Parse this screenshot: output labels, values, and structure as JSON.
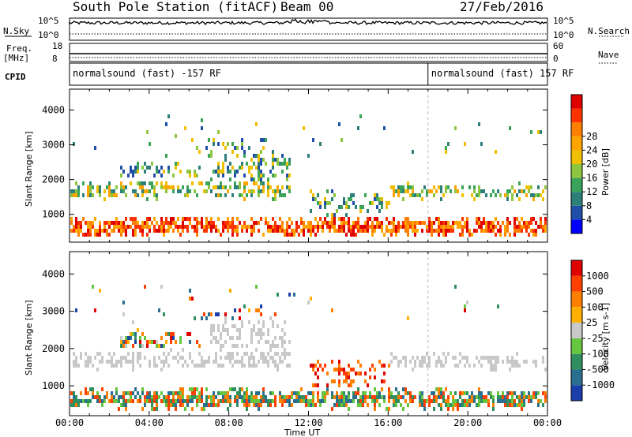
{
  "header": {
    "station": "South Pole Station (fitACF)",
    "beam": "Beam 00",
    "date": "27/Feb/2016"
  },
  "panel_labels": {
    "nsky": "N.Sky",
    "nsearch": "N.Search",
    "freq_top": "Freq.",
    "freq_unit": "[MHz]",
    "nave": "Nave",
    "cpid": "CPID"
  },
  "aux_ticks": {
    "nsky_hi": "10^5",
    "nsky_lo": "10^0",
    "nsearch_hi": "10^5",
    "nsearch_lo": "10^0",
    "freq_hi": "18",
    "freq_lo": "8",
    "nave_hi": "60",
    "nave_lo": "0"
  },
  "cpid_labels": [
    {
      "text": "normalsound (fast) -157 RF",
      "start_hour": 0.0
    },
    {
      "text": "normalsound (fast) 157 RF",
      "start_hour": 18.0
    }
  ],
  "chart_data": [
    {
      "type": "heatmap",
      "name": "power",
      "ylabel": "Slant Range [km]",
      "xlabel": "",
      "xlim_hours": [
        0,
        24
      ],
      "ylim": [
        200,
        4600
      ],
      "y_ticks": [
        1000,
        2000,
        3000,
        4000
      ],
      "colorbar": {
        "label": "Power [dB]",
        "ticks": [
          "4",
          "8",
          "12",
          "16",
          "20",
          "24",
          "28"
        ],
        "colors": [
          "#0000ff",
          "#1f4fa8",
          "#2d7f7a",
          "#3aa35a",
          "#8cc63f",
          "#f0c000",
          "#ffa500",
          "#ff7f00",
          "#ff3300",
          "#e00000"
        ]
      }
    },
    {
      "type": "heatmap",
      "name": "velocity",
      "ylabel": "Slant Range [km]",
      "xlabel": "Time UT",
      "xlim_hours": [
        0,
        24
      ],
      "ylim": [
        200,
        4600
      ],
      "y_ticks": [
        1000,
        2000,
        3000,
        4000
      ],
      "x_ticks": [
        "00:00",
        "04:00",
        "08:00",
        "12:00",
        "16:00",
        "20:00",
        "00:00"
      ],
      "colorbar": {
        "label": "Velocity [m s-1]",
        "ticks": [
          "1000",
          "500",
          "100",
          "25",
          "-25",
          "-100",
          "-500",
          "-1000"
        ],
        "colors": [
          "#1a3fa8",
          "#2a6f8f",
          "#2f8f5f",
          "#66c63f",
          "#c8c8c8",
          "#ffb000",
          "#ff8000",
          "#ff4000",
          "#e00000"
        ]
      }
    }
  ]
}
